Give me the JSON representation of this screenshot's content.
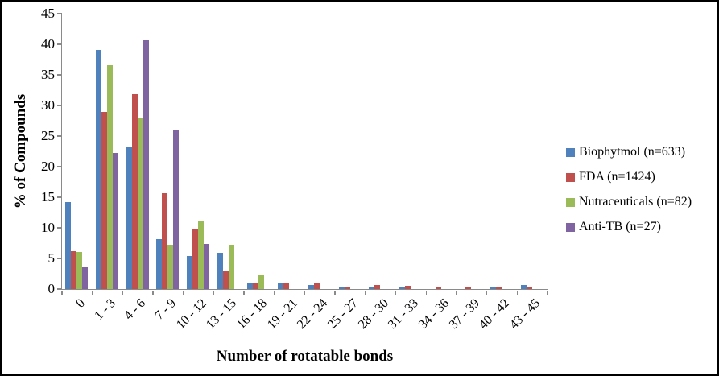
{
  "figure": {
    "border_color": "#000000",
    "background": "#ffffff",
    "axis_color": "#8a8a8a"
  },
  "chart_data": {
    "type": "bar",
    "title": "",
    "xlabel": "Number of rotatable bonds",
    "ylabel": "% of Compounds",
    "ylim": [
      0,
      45
    ],
    "yticks": [
      0,
      5,
      10,
      15,
      20,
      25,
      30,
      35,
      40,
      45
    ],
    "grid": false,
    "legend_position": "right",
    "categories": [
      "0",
      "1 - 3",
      "4 - 6",
      "7 - 9",
      "10 - 12",
      "13 - 15",
      "16 - 18",
      "19 - 21",
      "22 - 24",
      "25 - 27",
      "28 - 30",
      "31 - 33",
      "34 - 36",
      "37 - 39",
      "40 - 42",
      "43 - 45"
    ],
    "series": [
      {
        "name": "Biophytmol (n=633)",
        "color": "#4F81BD",
        "values": [
          14.2,
          39.1,
          23.3,
          8.1,
          5.4,
          5.9,
          1.1,
          0.9,
          0.6,
          0.3,
          0.2,
          0.3,
          0,
          0,
          0.2,
          0.7
        ]
      },
      {
        "name": "FDA (n=1424)",
        "color": "#C0504D",
        "values": [
          6.2,
          29.0,
          31.9,
          15.7,
          9.8,
          2.9,
          0.9,
          1.1,
          1.0,
          0.4,
          0.6,
          0.5,
          0.4,
          0.2,
          0.2,
          0.3
        ]
      },
      {
        "name": "Nutraceuticals (n=82)",
        "color": "#9BBB59",
        "values": [
          6.1,
          36.6,
          28.0,
          7.3,
          11.0,
          7.3,
          2.4,
          0,
          0,
          0,
          0,
          0,
          0,
          0,
          0,
          0
        ]
      },
      {
        "name": "Anti-TB (n=27)",
        "color": "#8064A2",
        "values": [
          3.7,
          22.2,
          40.7,
          25.9,
          7.4,
          0,
          0,
          0,
          0,
          0,
          0,
          0,
          0,
          0,
          0,
          0
        ]
      }
    ]
  }
}
